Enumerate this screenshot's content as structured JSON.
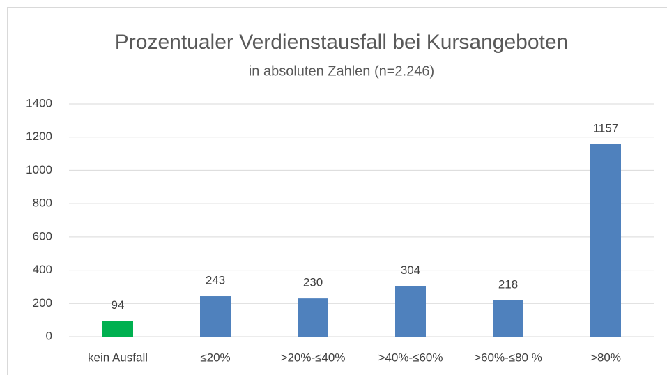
{
  "chart_data": {
    "type": "bar",
    "title": "Prozentualer Verdienstausfall bei Kursangeboten",
    "subtitle": "in absoluten Zahlen (n=2.246)",
    "categories": [
      "kein Ausfall",
      "≤20%",
      ">20%-≤40%",
      ">40%-≤60%",
      ">60%-≤80 %",
      ">80%"
    ],
    "values": [
      94,
      243,
      230,
      304,
      218,
      1157
    ],
    "colors": [
      "#00b050",
      "#4f81bd",
      "#4f81bd",
      "#4f81bd",
      "#4f81bd",
      "#4f81bd"
    ],
    "ylim": [
      0,
      1400
    ],
    "yticks": [
      0,
      200,
      400,
      600,
      800,
      1000,
      1200,
      1400
    ],
    "grid": true
  }
}
